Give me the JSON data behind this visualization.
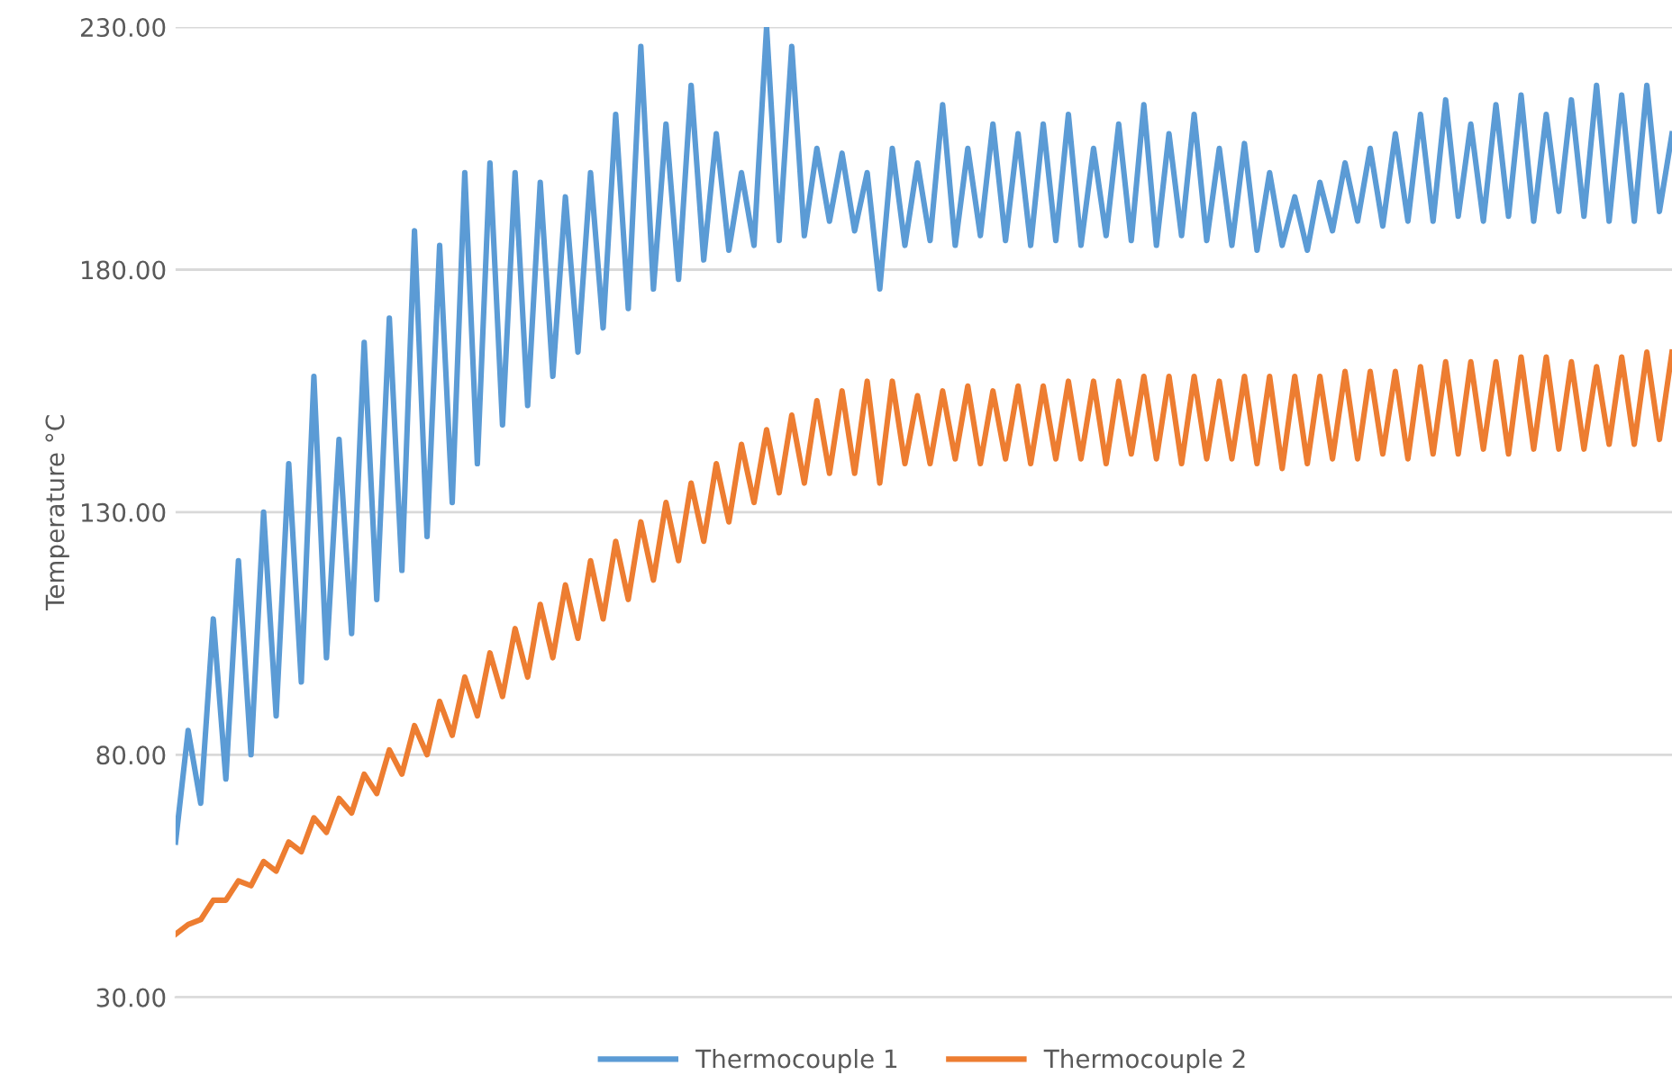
{
  "chart_data": {
    "type": "line",
    "ylabel": "Temperature °C",
    "categories": [
      null,
      null,
      null,
      null,
      null,
      null,
      null,
      null,
      null,
      null,
      null,
      null,
      null,
      null,
      null,
      null,
      null,
      null,
      null,
      null,
      null,
      null,
      null,
      null,
      null,
      null,
      null,
      null,
      null,
      null,
      null,
      null,
      null,
      null,
      null,
      null,
      null,
      null,
      null,
      null,
      null,
      null,
      null,
      null,
      null,
      null,
      null,
      null,
      null,
      null,
      null,
      null,
      null,
      null,
      null,
      null,
      null,
      null,
      null,
      null,
      null,
      null,
      null,
      null,
      null,
      null,
      null,
      null,
      null,
      null,
      null,
      null,
      null,
      null,
      null,
      null,
      null,
      null,
      null,
      null,
      null,
      null,
      null,
      null,
      null,
      null,
      null,
      null,
      null,
      null,
      null,
      null,
      null,
      null,
      null,
      null,
      null,
      null,
      null,
      null,
      null,
      null,
      null,
      null,
      null,
      null,
      null,
      null,
      null,
      null,
      null,
      null,
      null,
      null,
      null,
      null,
      null,
      null,
      null,
      null
    ],
    "series": [
      {
        "name": "Thermocouple 1",
        "color": "#5b9bd5",
        "values": [
          62,
          85,
          70,
          108,
          75,
          120,
          80,
          130,
          88,
          140,
          95,
          158,
          100,
          145,
          105,
          165,
          112,
          170,
          118,
          188,
          125,
          185,
          132,
          200,
          140,
          202,
          148,
          200,
          152,
          198,
          158,
          195,
          163,
          200,
          168,
          212,
          172,
          226,
          176,
          210,
          178,
          218,
          182,
          208,
          184,
          200,
          185,
          230,
          186,
          226,
          187,
          205,
          190,
          204,
          188,
          200,
          176,
          205,
          185,
          202,
          186,
          214,
          185,
          205,
          187,
          210,
          186,
          208,
          185,
          210,
          186,
          212,
          185,
          205,
          187,
          210,
          186,
          214,
          185,
          208,
          187,
          212,
          186,
          205,
          185,
          206,
          184,
          200,
          185,
          195,
          184,
          198,
          188,
          202,
          190,
          205,
          189,
          208,
          190,
          212,
          190,
          215,
          191,
          210,
          190,
          214,
          191,
          216,
          190,
          212,
          192,
          215,
          191,
          218,
          190,
          216,
          190,
          218,
          192,
          208
        ]
      },
      {
        "name": "Thermocouple 2",
        "color": "#ed7d31",
        "values": [
          43,
          45,
          46,
          50,
          50,
          54,
          53,
          58,
          56,
          62,
          60,
          67,
          64,
          71,
          68,
          76,
          72,
          81,
          76,
          86,
          80,
          91,
          84,
          96,
          88,
          101,
          92,
          106,
          96,
          111,
          100,
          115,
          104,
          120,
          108,
          124,
          112,
          128,
          116,
          132,
          120,
          136,
          124,
          140,
          128,
          144,
          132,
          147,
          134,
          150,
          136,
          153,
          138,
          155,
          138,
          157,
          136,
          157,
          140,
          154,
          140,
          155,
          141,
          156,
          140,
          155,
          141,
          156,
          140,
          156,
          141,
          157,
          141,
          157,
          140,
          157,
          142,
          158,
          141,
          158,
          140,
          158,
          141,
          157,
          141,
          158,
          140,
          158,
          139,
          158,
          140,
          158,
          141,
          159,
          141,
          159,
          142,
          159,
          141,
          160,
          142,
          161,
          142,
          161,
          143,
          161,
          142,
          162,
          143,
          162,
          143,
          161,
          143,
          160,
          144,
          162,
          144,
          163,
          145,
          163
        ]
      }
    ],
    "ylim": [
      30,
      230
    ],
    "yticks": [
      {
        "value": 30,
        "label": "30.00"
      },
      {
        "value": 80,
        "label": "80.00"
      },
      {
        "value": 130,
        "label": "130.00"
      },
      {
        "value": 180,
        "label": "180.00"
      },
      {
        "value": 230,
        "label": "230.00"
      }
    ],
    "grid": "y",
    "legend": "bottom",
    "marker": "none",
    "line_style": "solid"
  }
}
